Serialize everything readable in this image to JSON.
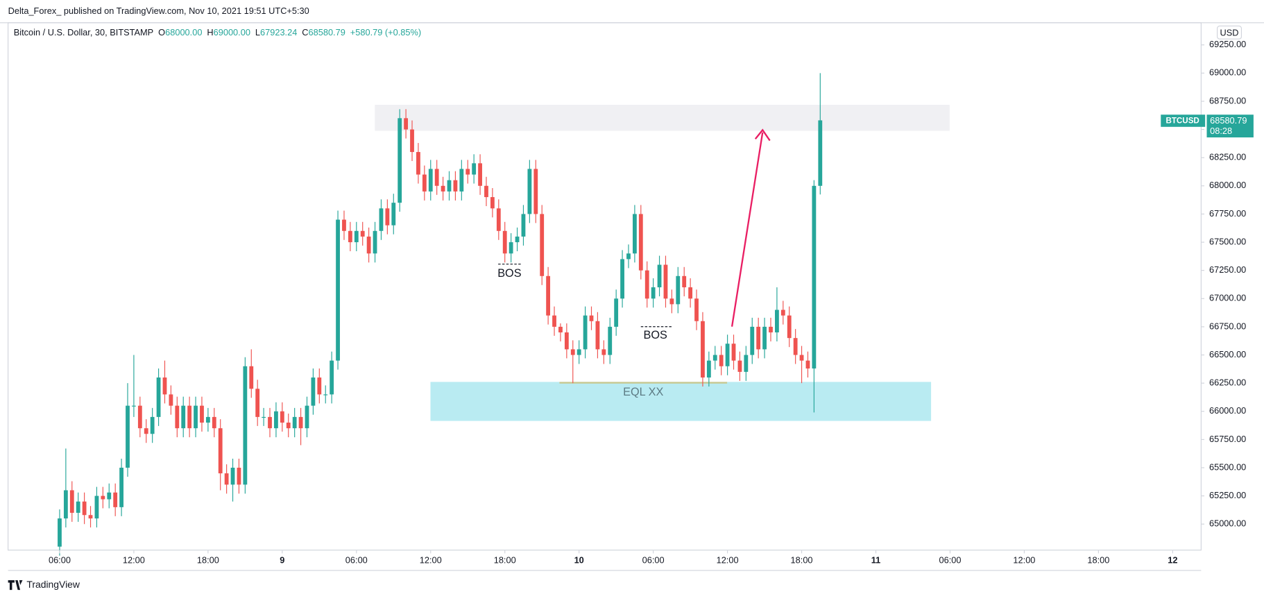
{
  "header": {
    "publisher": "Delta_Forex_ published on TradingView.com, Nov 10, 2021 19:51 UTC+5:30",
    "symbol": "Bitcoin / U.S. Dollar, 30, BITSTAMP",
    "ohlc": [
      {
        "key": "O",
        "value": "68000.00"
      },
      {
        "key": "H",
        "value": "69000.00"
      },
      {
        "key": "L",
        "value": "67923.24"
      },
      {
        "key": "C",
        "value": "68580.79"
      }
    ],
    "change": "+580.79 (+0.85%)"
  },
  "footer": "TradingView",
  "chart_data": {
    "type": "candlestick",
    "currency": "USD",
    "symbol_tag": "BTCUSD",
    "countdown": "08:28",
    "up_color": "#26a69a",
    "down_color": "#ef5350",
    "grid": false,
    "open": [
      64800,
      65050,
      65300,
      65100,
      65200,
      65080,
      65050,
      65250,
      65220,
      65280,
      65150,
      65500,
      66050,
      66050,
      65850,
      65800,
      65950,
      66300,
      66150,
      66050,
      65850,
      66050,
      65850,
      66050,
      65900,
      65950,
      65850,
      65450,
      65350,
      65500,
      65350,
      66400,
      66200,
      65950,
      65950,
      65850,
      66000,
      65900,
      65850,
      65950,
      65850,
      66050,
      66300,
      66150,
      66150,
      66450,
      67700,
      67600,
      67500,
      67600,
      67550,
      67400,
      67600,
      67800,
      67650,
      67850,
      68600,
      68500,
      68300,
      68100,
      67950,
      68150,
      68000,
      67950,
      68050,
      67950,
      68150,
      68100,
      68200,
      68000,
      67900,
      67800,
      67600,
      67400,
      67500,
      67550,
      67750,
      68150,
      67750,
      67200,
      66850,
      66750,
      66700,
      66550,
      66500,
      66550,
      66850,
      66800,
      66550,
      66500,
      66750,
      67000,
      67350,
      67400,
      67750,
      67250,
      67000,
      67100,
      67300,
      67000,
      66950,
      67200,
      67100,
      67000,
      66800,
      66300,
      66450,
      66500,
      66400,
      66600,
      66450,
      66350,
      66500,
      66750,
      66550,
      66750,
      66700,
      66900,
      66850,
      66650,
      66500,
      66450,
      66380,
      68000
    ],
    "high": [
      65130,
      65670,
      65380,
      65280,
      65280,
      65160,
      65330,
      65330,
      65360,
      65360,
      65580,
      66250,
      66500,
      66130,
      65930,
      66030,
      66380,
      66450,
      66230,
      66130,
      66130,
      66130,
      66130,
      66130,
      66030,
      66030,
      65930,
      65530,
      65580,
      65580,
      66480,
      66550,
      66280,
      66030,
      66030,
      66080,
      66080,
      65980,
      66030,
      66030,
      66130,
      66380,
      66380,
      66230,
      66530,
      67780,
      67780,
      67680,
      67680,
      67680,
      67630,
      67680,
      67880,
      67880,
      67930,
      68680,
      68680,
      68580,
      68380,
      68180,
      68230,
      68230,
      68080,
      68130,
      68130,
      68230,
      68230,
      68280,
      68280,
      68080,
      67980,
      67880,
      67680,
      67580,
      67630,
      67830,
      68230,
      68230,
      67830,
      67280,
      66930,
      66780,
      66780,
      66630,
      66630,
      66930,
      66930,
      66880,
      66630,
      66830,
      67080,
      67430,
      67480,
      67830,
      67830,
      67330,
      67180,
      67380,
      67380,
      67080,
      67280,
      67280,
      67180,
      67080,
      66880,
      66530,
      66580,
      66580,
      66680,
      66680,
      66530,
      66580,
      66830,
      66830,
      66830,
      66830,
      67100,
      66980,
      66930,
      66730,
      66580,
      66530,
      68050,
      69000
    ],
    "low": [
      64720,
      64970,
      65020,
      65020,
      65000,
      64970,
      64970,
      65140,
      65140,
      65070,
      65070,
      65420,
      65950,
      65770,
      65720,
      65720,
      65870,
      66070,
      65970,
      65770,
      65770,
      65770,
      65770,
      65820,
      65820,
      65770,
      65300,
      65270,
      65200,
      65270,
      65270,
      66120,
      65870,
      65870,
      65770,
      65770,
      65820,
      65770,
      65770,
      65700,
      65770,
      65970,
      66070,
      66070,
      66070,
      66370,
      67520,
      67420,
      67420,
      67470,
      67320,
      67320,
      67520,
      67570,
      67570,
      67770,
      68420,
      68220,
      68020,
      67870,
      67870,
      67920,
      67870,
      67870,
      67870,
      67870,
      68020,
      68020,
      67920,
      67820,
      67720,
      67520,
      67320,
      67320,
      67420,
      67470,
      67670,
      67670,
      67120,
      66770,
      66670,
      66620,
      66470,
      66250,
      66420,
      66470,
      66720,
      66470,
      66420,
      66420,
      66670,
      66920,
      67270,
      67320,
      67170,
      66920,
      66920,
      67020,
      66920,
      66870,
      66870,
      67020,
      66920,
      66720,
      66220,
      66220,
      66370,
      66320,
      66320,
      66370,
      66270,
      66270,
      66420,
      66470,
      66470,
      66620,
      66620,
      66770,
      66570,
      66420,
      66250,
      66300,
      65990,
      67923.24
    ],
    "close": [
      65050,
      65300,
      65100,
      65200,
      65080,
      65050,
      65250,
      65220,
      65280,
      65150,
      65500,
      66050,
      66050,
      65850,
      65800,
      65950,
      66300,
      66150,
      66050,
      65850,
      66050,
      65850,
      66050,
      65900,
      65950,
      65850,
      65450,
      65350,
      65500,
      65350,
      66400,
      66200,
      65950,
      65950,
      65850,
      66000,
      65900,
      65850,
      65950,
      65850,
      66050,
      66300,
      66150,
      66150,
      66450,
      67700,
      67600,
      67500,
      67600,
      67550,
      67400,
      67600,
      67800,
      67650,
      67850,
      68600,
      68500,
      68300,
      68100,
      67950,
      68150,
      68000,
      67950,
      68050,
      67950,
      68150,
      68100,
      68200,
      68000,
      67900,
      67800,
      67600,
      67400,
      67500,
      67550,
      67750,
      68150,
      67750,
      67200,
      66850,
      66750,
      66700,
      66550,
      66500,
      66550,
      66850,
      66800,
      66550,
      66500,
      66750,
      67000,
      67350,
      67400,
      67750,
      67250,
      67000,
      67100,
      67300,
      67000,
      66950,
      67200,
      67100,
      67000,
      66800,
      66300,
      66450,
      66500,
      66400,
      66600,
      66450,
      66350,
      66500,
      66750,
      66550,
      66750,
      66700,
      66900,
      66850,
      66650,
      66500,
      66450,
      66380,
      68000,
      68580.79
    ],
    "xlim": [
      -8.34,
      184.6
    ],
    "xticks": [
      {
        "value": 0,
        "label": "06:00"
      },
      {
        "value": 12,
        "label": "12:00"
      },
      {
        "value": 24,
        "label": "18:00"
      },
      {
        "value": 36,
        "label": "9"
      },
      {
        "value": 48,
        "label": "06:00"
      },
      {
        "value": 60,
        "label": "12:00"
      },
      {
        "value": 72,
        "label": "18:00"
      },
      {
        "value": 84,
        "label": "10"
      },
      {
        "value": 96,
        "label": "06:00"
      },
      {
        "value": 108,
        "label": "12:00"
      },
      {
        "value": 120,
        "label": "18:00"
      },
      {
        "value": 132,
        "label": "11"
      },
      {
        "value": 144,
        "label": "06:00"
      },
      {
        "value": 156,
        "label": "12:00"
      },
      {
        "value": 168,
        "label": "18:00"
      },
      {
        "value": 180,
        "label": "12"
      }
    ],
    "ylim": [
      64769,
      69432
    ],
    "yticks": [
      {
        "value": 65000,
        "label": "65000.00"
      },
      {
        "value": 65250,
        "label": "65250.00"
      },
      {
        "value": 65500,
        "label": "65500.00"
      },
      {
        "value": 65750,
        "label": "65750.00"
      },
      {
        "value": 66000,
        "label": "66000.00"
      },
      {
        "value": 66250,
        "label": "66250.00"
      },
      {
        "value": 66500,
        "label": "66500.00"
      },
      {
        "value": 66750,
        "label": "66750.00"
      },
      {
        "value": 67000,
        "label": "67000.00"
      },
      {
        "value": 67250,
        "label": "67250.00"
      },
      {
        "value": 67500,
        "label": "67500.00"
      },
      {
        "value": 67750,
        "label": "67750.00"
      },
      {
        "value": 68000,
        "label": "68000.00"
      },
      {
        "value": 68250,
        "label": "68250.00"
      },
      {
        "value": 68500,
        "label": "68500.00"
      },
      {
        "value": 68750,
        "label": "68750.00"
      },
      {
        "value": 69000,
        "label": "69000.00"
      },
      {
        "value": 69250,
        "label": "69250.00"
      }
    ],
    "annotations": [
      {
        "text": "BOS"
      },
      {
        "text": "BOS"
      },
      {
        "text": "EQL XX"
      }
    ]
  }
}
